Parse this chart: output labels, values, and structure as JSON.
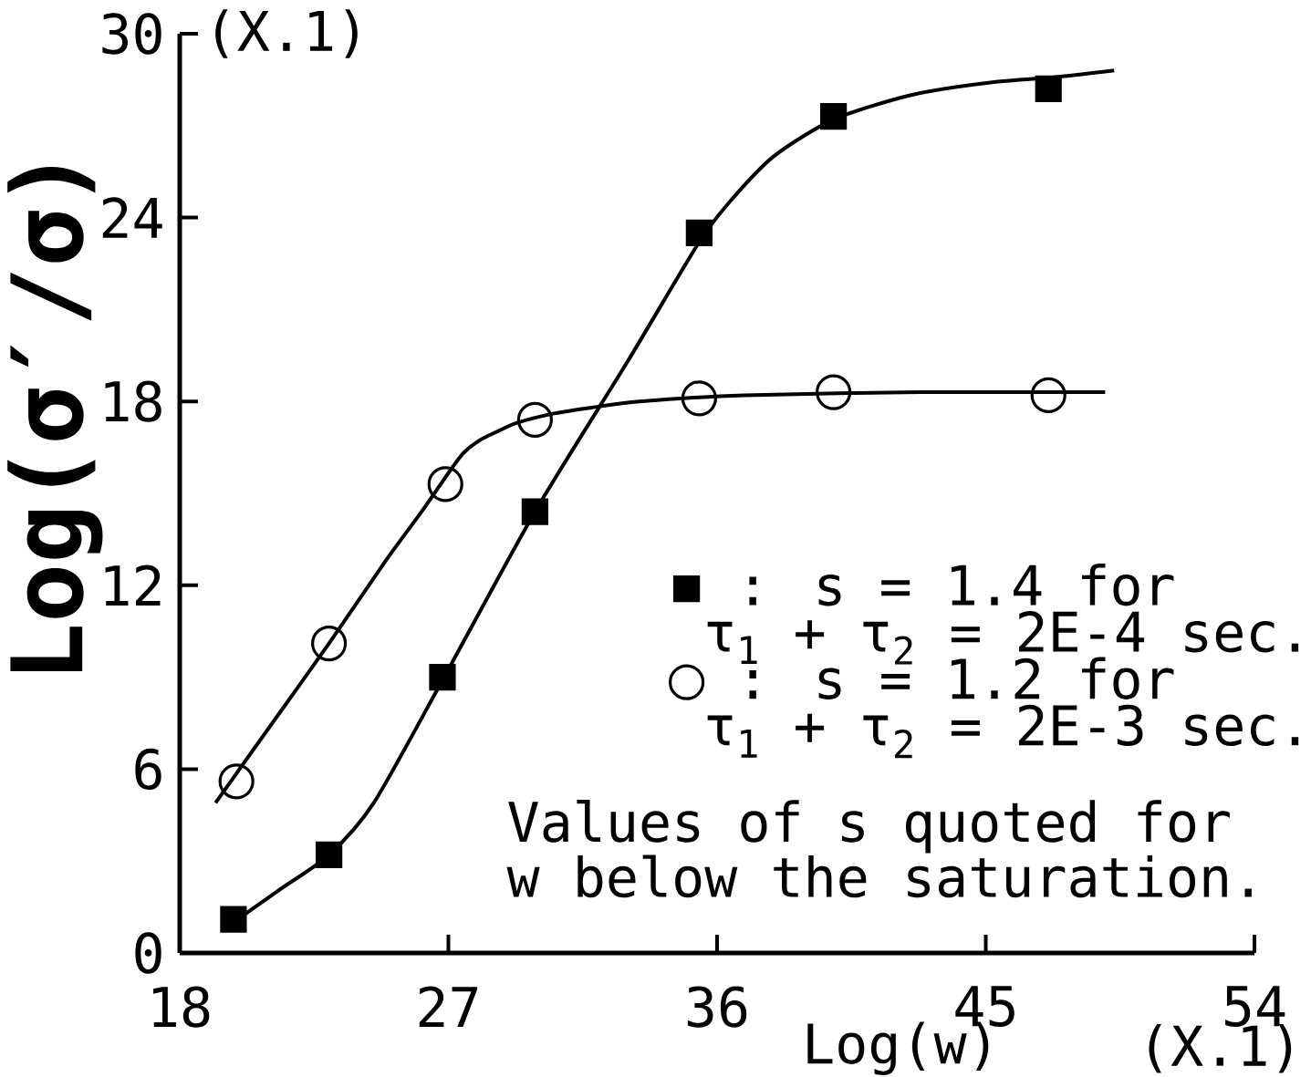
{
  "chart_data": {
    "type": "scatter",
    "xlabel": "Log(w)",
    "ylabel": "Log(σ′/σ)",
    "annotations": [
      "(X.1)",
      "(X.1)",
      "Values of s quoted for w below the saturation."
    ],
    "xlim": [
      18,
      54
    ],
    "ylim": [
      0,
      30
    ],
    "xticks": [
      18,
      27,
      36,
      45,
      54
    ],
    "yticks": [
      0,
      6,
      12,
      18,
      24,
      30
    ],
    "legend": "right",
    "series": [
      {
        "name": ": s = 1.4 for τ$_{1}$ + τ$_{2}$ = 2E-4 sec.",
        "color": "#000000",
        "marker": "square",
        "x": [
          19.8,
          23.0,
          26.8,
          29.9,
          35.4,
          39.9,
          47.1
        ],
        "values": [
          1.1,
          3.2,
          9.0,
          14.4,
          23.5,
          27.3,
          28.2
        ]
      },
      {
        "name": ": s = 1.2 for τ$_{1}$ + τ$_{2}$ = 2E-3 sec.",
        "color": "#000000",
        "marker": "circle",
        "x": [
          19.9,
          23.0,
          26.9,
          29.9,
          35.4,
          39.9,
          47.1
        ],
        "values": [
          5.6,
          10.1,
          15.3,
          17.4,
          18.1,
          18.3,
          18.2
        ]
      },
      {
        "type": "line",
        "color": "#000000",
        "line_style": "solid",
        "x": [
          19.8,
          21.4,
          23.0,
          24.5,
          26.8,
          29.9,
          33.0,
          35.4,
          36.5,
          37.9,
          39.9,
          42.5,
          45.1,
          47.5,
          49.3
        ],
        "values": [
          1.0,
          2.1,
          3.2,
          4.9,
          8.9,
          14.4,
          19.3,
          23.2,
          24.6,
          26.0,
          27.2,
          28.0,
          28.4,
          28.6,
          28.8
        ]
      },
      {
        "type": "line",
        "color": "#000000",
        "line_style": "solid",
        "x": [
          19.2,
          21.1,
          23.0,
          24.9,
          26.1,
          27.4,
          28.0,
          28.6,
          29.3,
          30.5,
          31.8,
          33.4,
          36.9,
          42.8,
          49.0
        ],
        "values": [
          4.9,
          7.5,
          10.1,
          12.8,
          14.4,
          16.2,
          16.7,
          17.0,
          17.3,
          17.6,
          17.8,
          18.0,
          18.2,
          18.3,
          18.3
        ]
      }
    ]
  }
}
